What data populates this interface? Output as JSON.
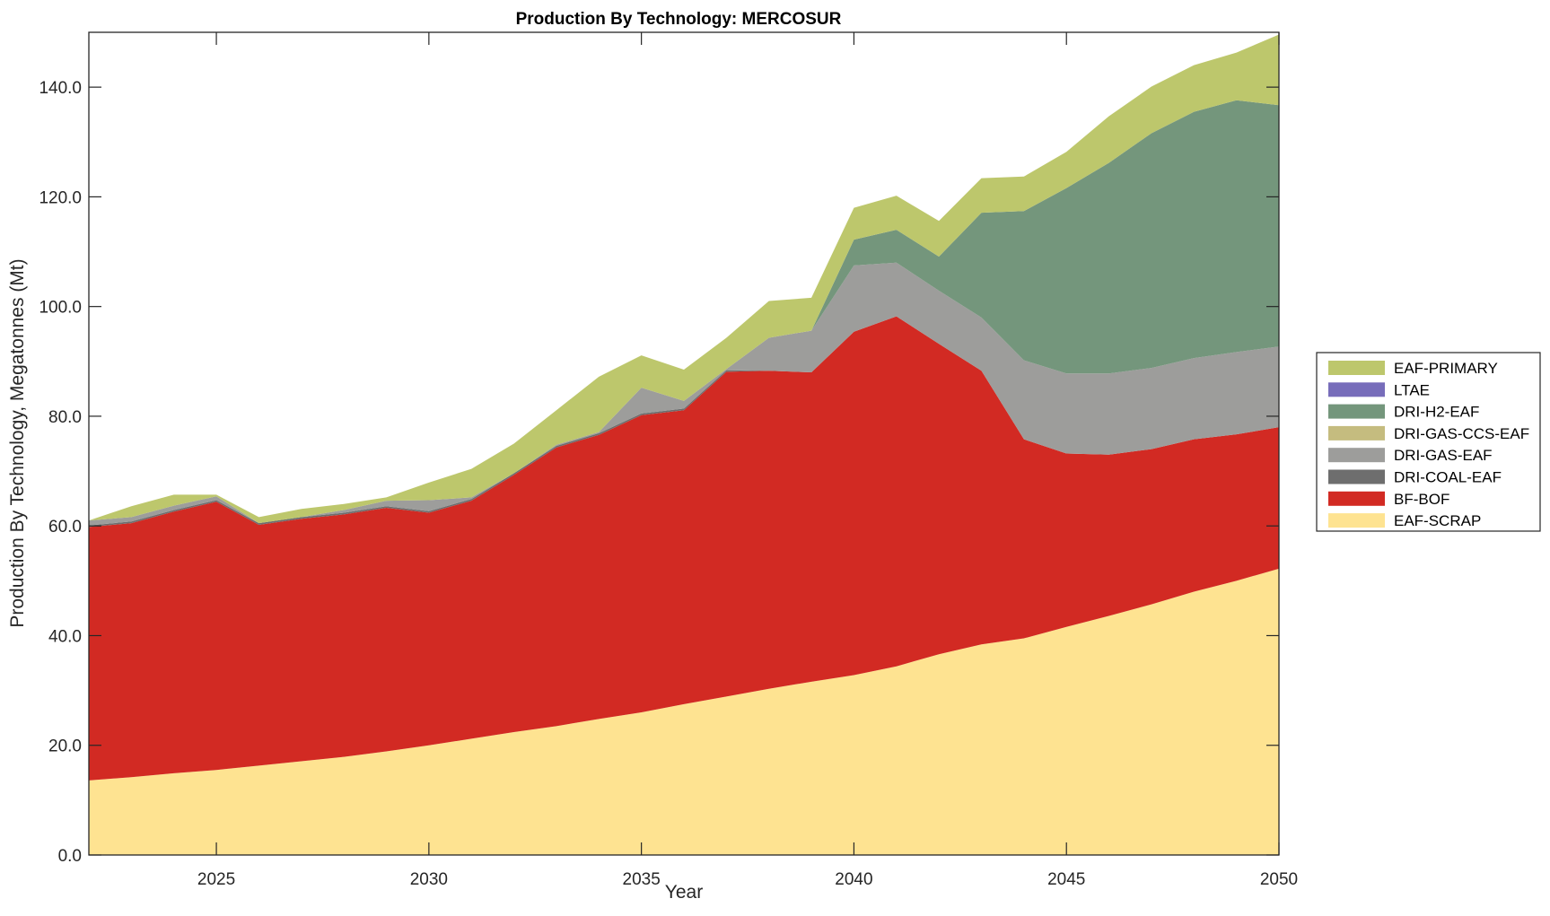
{
  "chart_data": {
    "type": "area",
    "stacked": true,
    "title": "Production By Technology: MERCOSUR",
    "xlabel": "Year",
    "ylabel": "Production By Technology, Megatonnes (Mt)",
    "xlim": [
      2022,
      2050
    ],
    "ylim": [
      0,
      150
    ],
    "grid": false,
    "legend_position": "right",
    "x": [
      2022,
      2023,
      2024,
      2025,
      2026,
      2027,
      2028,
      2029,
      2030,
      2031,
      2032,
      2033,
      2034,
      2035,
      2036,
      2037,
      2038,
      2039,
      2040,
      2041,
      2042,
      2043,
      2044,
      2045,
      2046,
      2047,
      2048,
      2049,
      2050
    ],
    "x_ticks": [
      "2025",
      "2030",
      "2035",
      "2040",
      "2045",
      "2050"
    ],
    "x_tick_values": [
      2025,
      2030,
      2035,
      2040,
      2045,
      2050
    ],
    "y_ticks": [
      "0.0",
      "20.0",
      "40.0",
      "60.0",
      "80.0",
      "100.0",
      "120.0",
      "140.0"
    ],
    "y_tick_values": [
      0,
      20,
      40,
      60,
      80,
      100,
      120,
      140
    ],
    "series": [
      {
        "name": "EAF-SCRAP",
        "color": "#FEE391",
        "values": [
          13.6,
          14.2,
          14.9,
          15.5,
          16.3,
          17.1,
          17.9,
          18.9,
          20.0,
          21.2,
          22.4,
          23.5,
          24.8,
          26.0,
          27.5,
          28.9,
          30.3,
          31.6,
          32.8,
          34.4,
          36.6,
          38.4,
          39.5,
          41.6,
          43.6,
          45.7,
          48.0,
          50.0,
          52.2
        ]
      },
      {
        "name": "BF-BOF",
        "color": "#D22A23",
        "values": [
          46.2,
          46.3,
          47.7,
          48.9,
          43.9,
          44.2,
          44.2,
          44.4,
          42.4,
          43.4,
          46.9,
          50.8,
          51.8,
          54.2,
          53.6,
          59.2,
          58.0,
          56.4,
          62.6,
          63.8,
          56.6,
          49.9,
          36.3,
          31.6,
          29.4,
          28.3,
          27.8,
          26.7,
          25.8
        ]
      },
      {
        "name": "DRI-COAL-EAF",
        "color": "#6E6E6E",
        "values": [
          0.3,
          0.3,
          0.3,
          0.3,
          0.3,
          0.3,
          0.3,
          0.3,
          0.3,
          0.3,
          0.3,
          0.3,
          0.3,
          0.3,
          0.3,
          0.3,
          0,
          0,
          0,
          0,
          0,
          0,
          0,
          0,
          0,
          0,
          0,
          0,
          0
        ]
      },
      {
        "name": "DRI-GAS-EAF",
        "color": "#9D9D9B",
        "values": [
          0.9,
          0.8,
          0.8,
          0.7,
          0.0,
          0.0,
          0.5,
          1.0,
          2.0,
          0.3,
          0.0,
          0.2,
          0.2,
          4.7,
          1.4,
          0.2,
          6.0,
          7.6,
          12.1,
          9.8,
          9.7,
          9.7,
          14.4,
          14.6,
          14.8,
          14.8,
          14.8,
          15.0,
          14.7
        ]
      },
      {
        "name": "DRI-GAS-CCS-EAF",
        "color": "#C5BC7F",
        "values": [
          0,
          0,
          0,
          0,
          0,
          0,
          0,
          0,
          0,
          0,
          0,
          0,
          0,
          0,
          0,
          0,
          0,
          0,
          0,
          0,
          0,
          0,
          0,
          0,
          0,
          0,
          0,
          0,
          0
        ]
      },
      {
        "name": "DRI-H2-EAF",
        "color": "#74967C",
        "values": [
          0,
          0,
          0,
          0,
          0,
          0,
          0,
          0,
          0,
          0,
          0,
          0,
          0,
          0,
          0,
          0,
          0,
          0,
          4.7,
          6.0,
          6.2,
          19.1,
          27.2,
          33.8,
          38.4,
          42.8,
          44.9,
          45.9,
          44.0
        ]
      },
      {
        "name": "LTAE",
        "color": "#776DBA",
        "values": [
          0,
          0,
          0,
          0,
          0,
          0,
          0,
          0,
          0,
          0,
          0,
          0,
          0,
          0,
          0,
          0,
          0,
          0,
          0,
          0,
          0,
          0,
          0,
          0,
          0,
          0,
          0,
          0,
          0
        ]
      },
      {
        "name": "EAF-PRIMARY",
        "color": "#BDC76C",
        "values": [
          0.0,
          2.0,
          2.0,
          0.3,
          1.1,
          1.5,
          1.1,
          0.6,
          3.2,
          5.2,
          5.4,
          6.3,
          10.1,
          5.9,
          5.7,
          5.7,
          6.7,
          6.0,
          5.8,
          6.2,
          6.5,
          6.3,
          6.3,
          6.6,
          8.5,
          8.5,
          8.5,
          8.7,
          12.9
        ]
      }
    ],
    "legend_order": [
      "EAF-PRIMARY",
      "LTAE",
      "DRI-H2-EAF",
      "DRI-GAS-CCS-EAF",
      "DRI-GAS-EAF",
      "DRI-COAL-EAF",
      "BF-BOF",
      "EAF-SCRAP"
    ]
  }
}
